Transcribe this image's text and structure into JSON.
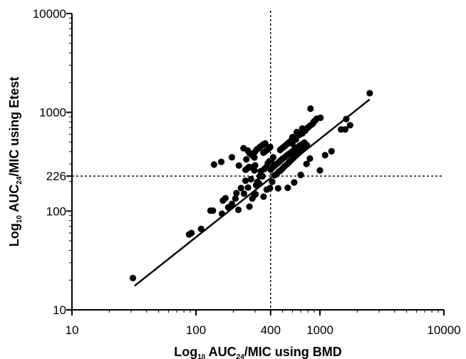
{
  "chart_data": {
    "type": "scatter",
    "title": "",
    "xlabel": {
      "pre": "Log",
      "sub1": "10",
      "mid": " AUC",
      "sub2": "24",
      "post": "/MIC using BMD"
    },
    "ylabel": {
      "pre": "Log",
      "sub1": "10",
      "mid": " AUC",
      "sub2": "24",
      "post": "/MIC using Etest"
    },
    "x_scale": "log",
    "y_scale": "log",
    "xlim": [
      10,
      10000
    ],
    "ylim": [
      10,
      10000
    ],
    "x_ticks": [
      {
        "value": 10,
        "label": "10"
      },
      {
        "value": 100,
        "label": "100"
      },
      {
        "value": 400,
        "label": "400"
      },
      {
        "value": 1000,
        "label": "1000"
      },
      {
        "value": 10000,
        "label": "10000"
      }
    ],
    "y_ticks": [
      {
        "value": 10,
        "label": "10"
      },
      {
        "value": 100,
        "label": "100"
      },
      {
        "value": 226,
        "label": "226"
      },
      {
        "value": 1000,
        "label": "1000"
      },
      {
        "value": 10000,
        "label": "10000"
      }
    ],
    "reference_lines": [
      {
        "orientation": "vertical",
        "value": 400,
        "style": "dashed"
      },
      {
        "orientation": "horizontal",
        "value": 226,
        "style": "dashed"
      }
    ],
    "regression_line": {
      "x": [
        32,
        2520
      ],
      "y": [
        17.5,
        1350
      ]
    },
    "grid": false,
    "legend": "none",
    "points": [
      [
        31,
        21
      ],
      [
        88,
        58
      ],
      [
        92,
        60
      ],
      [
        110,
        66
      ],
      [
        131,
        101
      ],
      [
        137,
        101
      ],
      [
        162,
        94
      ],
      [
        165,
        128
      ],
      [
        173,
        135
      ],
      [
        182,
        109
      ],
      [
        186,
        110
      ],
      [
        195,
        118
      ],
      [
        208,
        134
      ],
      [
        212,
        152
      ],
      [
        220,
        103
      ],
      [
        231,
        171
      ],
      [
        244,
        150
      ],
      [
        251,
        203
      ],
      [
        263,
        173
      ],
      [
        270,
        111
      ],
      [
        285,
        134
      ],
      [
        296,
        145
      ],
      [
        306,
        183
      ],
      [
        323,
        191
      ],
      [
        327,
        226
      ],
      [
        333,
        253
      ],
      [
        344,
        225
      ],
      [
        355,
        266
      ],
      [
        368,
        277
      ],
      [
        380,
        305
      ],
      [
        391,
        319
      ],
      [
        405,
        326
      ],
      [
        420,
        350
      ],
      [
        140,
        296
      ],
      [
        160,
        315
      ],
      [
        195,
        350
      ],
      [
        222,
        289
      ],
      [
        255,
        334
      ],
      [
        296,
        258
      ],
      [
        313,
        198
      ],
      [
        251,
        262
      ],
      [
        262,
        272
      ],
      [
        268,
        280
      ],
      [
        283,
        277
      ],
      [
        300,
        290
      ],
      [
        278,
        210
      ],
      [
        303,
        148
      ],
      [
        351,
        140
      ],
      [
        372,
        165
      ],
      [
        396,
        171
      ],
      [
        412,
        198
      ],
      [
        430,
        230
      ],
      [
        446,
        236
      ],
      [
        465,
        250
      ],
      [
        480,
        257
      ],
      [
        500,
        270
      ],
      [
        520,
        285
      ],
      [
        542,
        298
      ],
      [
        565,
        313
      ],
      [
        588,
        329
      ],
      [
        613,
        346
      ],
      [
        640,
        364
      ],
      [
        665,
        381
      ],
      [
        695,
        401
      ],
      [
        723,
        421
      ],
      [
        755,
        443
      ],
      [
        785,
        464
      ],
      [
        400,
        263
      ],
      [
        415,
        275
      ],
      [
        428,
        287
      ],
      [
        445,
        298
      ],
      [
        460,
        308
      ],
      [
        478,
        323
      ],
      [
        498,
        338
      ],
      [
        520,
        350
      ],
      [
        540,
        366
      ],
      [
        568,
        383
      ],
      [
        595,
        399
      ],
      [
        620,
        418
      ],
      [
        650,
        437
      ],
      [
        682,
        457
      ],
      [
        715,
        475
      ],
      [
        750,
        493
      ],
      [
        478,
        416
      ],
      [
        493,
        432
      ],
      [
        508,
        443
      ],
      [
        523,
        458
      ],
      [
        540,
        474
      ],
      [
        556,
        487
      ],
      [
        573,
        505
      ],
      [
        592,
        525
      ],
      [
        617,
        550
      ],
      [
        640,
        570
      ],
      [
        350,
        390
      ],
      [
        361,
        401
      ],
      [
        374,
        415
      ],
      [
        386,
        428
      ],
      [
        397,
        445
      ],
      [
        300,
        399
      ],
      [
        310,
        421
      ],
      [
        320,
        432
      ],
      [
        330,
        448
      ],
      [
        342,
        463
      ],
      [
        350,
        473
      ],
      [
        362,
        484
      ],
      [
        296,
        349
      ],
      [
        287,
        362
      ],
      [
        278,
        377
      ],
      [
        270,
        386
      ],
      [
        262,
        409
      ],
      [
        242,
        433
      ],
      [
        600,
        480
      ],
      [
        640,
        530
      ],
      [
        680,
        590
      ],
      [
        720,
        610
      ],
      [
        760,
        650
      ],
      [
        770,
        680
      ],
      [
        800,
        700
      ],
      [
        830,
        730
      ],
      [
        870,
        760
      ],
      [
        890,
        800
      ],
      [
        910,
        820
      ],
      [
        940,
        860
      ],
      [
        600,
        560
      ],
      [
        650,
        630
      ],
      [
        720,
        685
      ],
      [
        840,
        1090
      ],
      [
        1010,
        880
      ],
      [
        1630,
        855
      ],
      [
        1750,
        740
      ],
      [
        1600,
        670
      ],
      [
        1480,
        670
      ],
      [
        1100,
        368
      ],
      [
        1240,
        403
      ],
      [
        1000,
        258
      ],
      [
        830,
        340
      ],
      [
        780,
        300
      ],
      [
        700,
        232
      ],
      [
        620,
        195
      ],
      [
        550,
        172
      ],
      [
        460,
        170
      ],
      [
        2520,
        1560
      ]
    ]
  }
}
